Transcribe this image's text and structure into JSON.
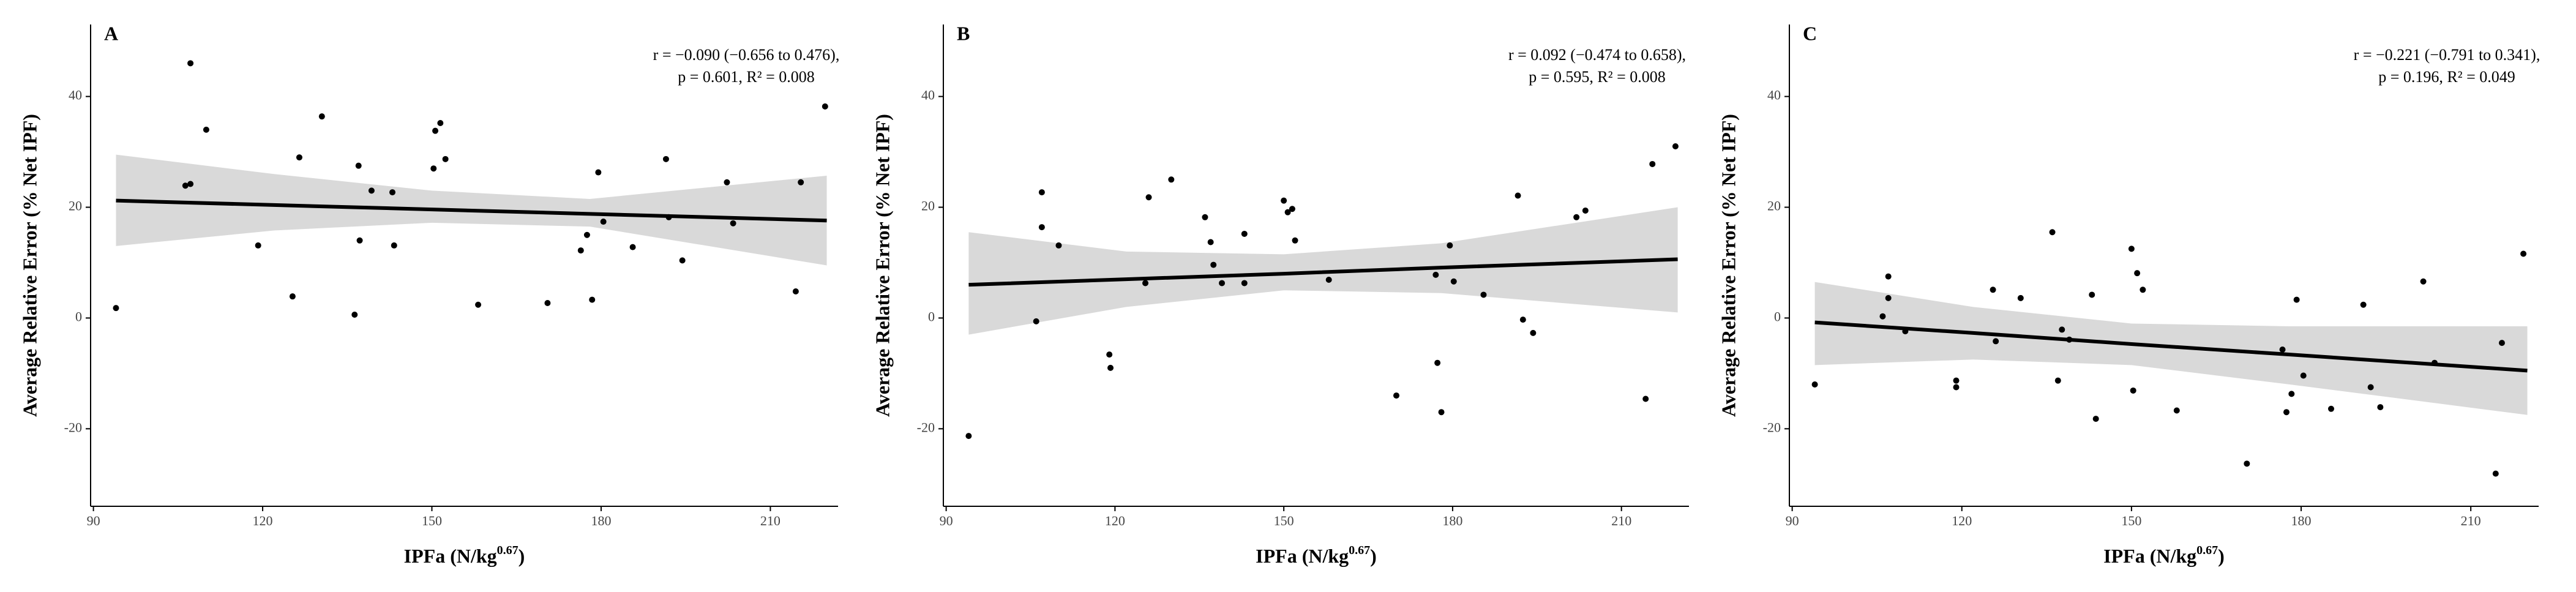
{
  "chart_data": [
    {
      "type": "scatter",
      "panel_label": "A",
      "stats": [
        "r = −0.090 (−0.656 to 0.476),",
        "p = 0.601, R² = 0.008"
      ],
      "x_label": [
        "IPFa (N/kg",
        "0.67",
        ")"
      ],
      "y_label": "Average Relative Error (% Net IPF)",
      "x": [
        94,
        106.3,
        107.2,
        107.2,
        110,
        119.2,
        125.3,
        126.5,
        130.5,
        137,
        137.2,
        136.3,
        139.3,
        143,
        143.3,
        150.3,
        150.6,
        151.5,
        152.4,
        158.2,
        170.5,
        176.4,
        177.5,
        178.4,
        179.5,
        180.4,
        185.6,
        191.5,
        192,
        194.4,
        202.3,
        203.4,
        214.5,
        215.4,
        219.7
      ],
      "y": [
        1.8,
        23.9,
        24.2,
        46,
        34,
        13.1,
        3.9,
        29,
        36.4,
        27.5,
        14,
        0.6,
        23,
        22.7,
        13.1,
        27,
        33.8,
        35.2,
        28.7,
        2.4,
        2.7,
        12.2,
        15,
        3.3,
        26.3,
        17.4,
        12.8,
        28.7,
        18.2,
        10.4,
        24.5,
        17.1,
        4.8,
        24.5,
        38.2
      ],
      "fit": {
        "x": [
          94,
          122,
          150,
          178,
          220
        ],
        "y": [
          21.2,
          20.4,
          19.6,
          18.8,
          17.6
        ],
        "lower": [
          13,
          15.8,
          17.2,
          16.5,
          9.5
        ],
        "upper": [
          29.5,
          26,
          23,
          21.5,
          25.7
        ]
      },
      "xlim": [
        89.5,
        222
      ],
      "ylim": [
        -34,
        53
      ],
      "xticks": [
        90,
        120,
        150,
        180,
        210
      ],
      "yticks": [
        -20,
        0,
        20,
        40
      ],
      "point_color": "#000000",
      "line_color": "#000000",
      "band_color": "#d9d9d9"
    },
    {
      "type": "scatter",
      "panel_label": "B",
      "stats": [
        "r = 0.092 (−0.474 to 0.658),",
        "p = 0.595, R² = 0.008"
      ],
      "x_label": [
        "IPFa (N/kg",
        "0.67",
        ")"
      ],
      "y_label": "Average Relative Error (% Net IPF)",
      "x": [
        94,
        106,
        107,
        107,
        110,
        119,
        119.2,
        125.4,
        126,
        130,
        136,
        137,
        137.5,
        139,
        143,
        143,
        150,
        150.7,
        151.5,
        152,
        158,
        170,
        177,
        177.3,
        178,
        179.5,
        180.2,
        185.5,
        191.6,
        192.5,
        194.3,
        202,
        203.6,
        214.3,
        215.5,
        219.6
      ],
      "y": [
        -21.3,
        -0.6,
        22.7,
        16.4,
        13.1,
        -6.6,
        -9,
        6.3,
        21.8,
        25,
        18.2,
        13.7,
        9.6,
        6.3,
        6.3,
        15.2,
        21.2,
        19.1,
        19.7,
        14,
        6.9,
        -14,
        7.8,
        -8.1,
        -17,
        13.1,
        6.6,
        4.2,
        22.1,
        -0.3,
        -2.7,
        18.2,
        19.4,
        -14.6,
        27.8,
        31
      ],
      "fit": {
        "x": [
          94,
          122,
          150,
          178,
          220
        ],
        "y": [
          6,
          7,
          8,
          9.1,
          10.6
        ],
        "lower": [
          -3,
          2,
          5,
          4.5,
          1
        ],
        "upper": [
          15.5,
          12,
          11.5,
          13.5,
          20
        ]
      },
      "xlim": [
        89.5,
        222
      ],
      "ylim": [
        -34,
        53
      ],
      "xticks": [
        90,
        120,
        150,
        180,
        210
      ],
      "yticks": [
        -20,
        0,
        20,
        40
      ],
      "point_color": "#000000",
      "line_color": "#000000",
      "band_color": "#d9d9d9"
    },
    {
      "type": "scatter",
      "panel_label": "C",
      "stats": [
        "r = −0.221 (−0.791 to 0.341),",
        "p = 0.196, R² = 0.049"
      ],
      "x_label": [
        "IPFa (N/kg",
        "0.67",
        ")"
      ],
      "y_label": "Average Relative Error (% Net IPF)",
      "x": [
        94,
        106,
        107,
        107,
        110,
        119,
        119,
        125.5,
        126,
        130.4,
        136,
        137,
        137.7,
        139,
        143,
        143.7,
        150,
        150.3,
        151,
        152,
        158,
        170.4,
        176.7,
        177.4,
        178.3,
        179.2,
        180.4,
        185.3,
        191,
        192.3,
        194,
        201.6,
        203.6,
        214.4,
        215.5,
        219.3
      ],
      "y": [
        -12,
        0.3,
        3.6,
        7.5,
        -2.4,
        -11.3,
        -12.5,
        5.1,
        -4.2,
        3.6,
        15.5,
        -11.3,
        -2.1,
        -3.9,
        4.2,
        -18.2,
        12.5,
        -13.1,
        8.1,
        5.1,
        -16.7,
        -26.3,
        -5.7,
        -17,
        -13.7,
        3.3,
        -10.4,
        -16.4,
        2.4,
        -12.5,
        -16.1,
        6.6,
        -8.1,
        -28.1,
        -4.5,
        11.6
      ],
      "fit": {
        "x": [
          94,
          122,
          150,
          178,
          220
        ],
        "y": [
          -0.8,
          -2.7,
          -4.7,
          -6.6,
          -9.5
        ],
        "lower": [
          -8.5,
          -7.5,
          -8.5,
          -12,
          -17.5
        ],
        "upper": [
          6.5,
          2,
          -1,
          -1.5,
          -1.5
        ]
      },
      "xlim": [
        89.5,
        222
      ],
      "ylim": [
        -34,
        53
      ],
      "xticks": [
        90,
        120,
        150,
        180,
        210
      ],
      "yticks": [
        -20,
        0,
        20,
        40
      ],
      "point_color": "#000000",
      "line_color": "#000000",
      "band_color": "#d9d9d9"
    }
  ]
}
